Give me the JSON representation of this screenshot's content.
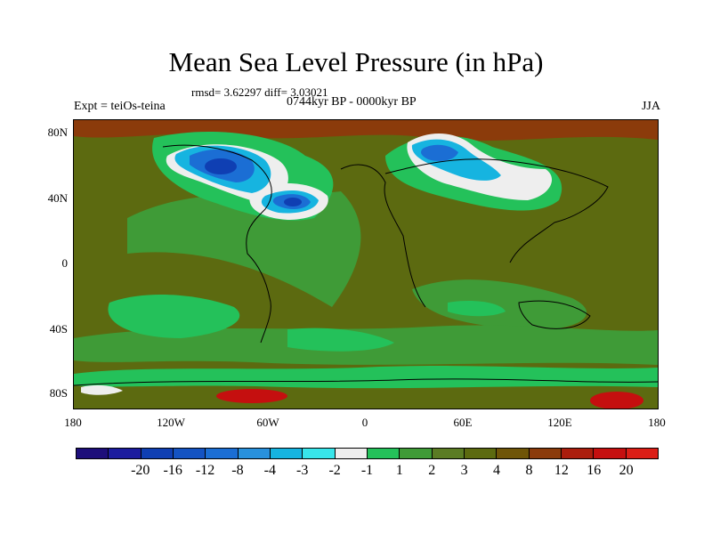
{
  "title": "Mean Sea Level Pressure (in hPa)",
  "stats": "rmsd= 3.62297 diff= 3.03021",
  "period": "0744kyr BP - 0000kyr BP",
  "experiment": "Expt = teiOs-teina",
  "season": "JJA",
  "lat_labels": [
    "80N",
    "40N",
    "0",
    "40S",
    "80S"
  ],
  "lon_labels": [
    "180",
    "120W",
    "60W",
    "0",
    "60E",
    "120E",
    "180"
  ],
  "colorbar": {
    "colors": [
      "#1d0e7a",
      "#1c1c9e",
      "#0f3fb3",
      "#1453c2",
      "#1b6ed4",
      "#2891dd",
      "#16b4e0",
      "#38e5ea",
      "#eeeeee",
      "#24c15a",
      "#3f9b37",
      "#5b7c24",
      "#5c6a10",
      "#6f5508",
      "#8b3b0b",
      "#ab1e0d",
      "#c50f0f",
      "#db1e16"
    ],
    "labels": [
      "-20",
      "-16",
      "-12",
      "-8",
      "-4",
      "-3",
      "-2",
      "-1",
      "1",
      "2",
      "3",
      "4",
      "8",
      "12",
      "16",
      "20"
    ]
  },
  "map_colors": {
    "base": "#5c6a10",
    "band": "#3f9b37",
    "green": "#24c15a",
    "white": "#eeeeee",
    "cyan": "#16b4e0",
    "blue": "#1b6ed4",
    "dark": "#0f3fb3",
    "brown": "#8b3b0b",
    "red": "#c50f0f"
  }
}
